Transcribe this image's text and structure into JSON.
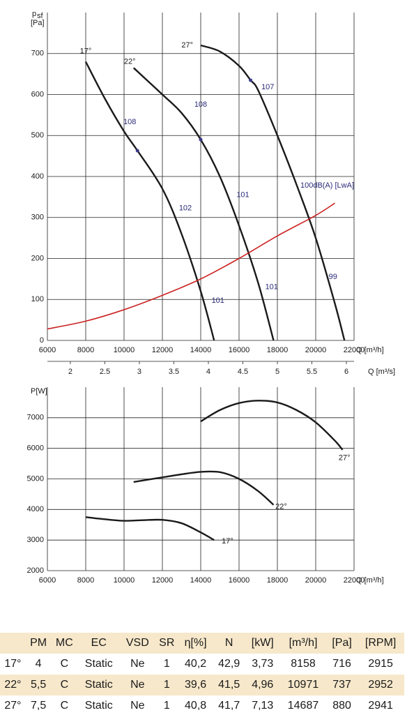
{
  "chart_data": [
    {
      "type": "line",
      "y_label": [
        "p",
        "sf",
        "[Pa]"
      ],
      "x_label": "Q [m³/h]",
      "x2_label": "Q [m³/s]",
      "xlim": [
        6000,
        22000
      ],
      "xticks": [
        6000,
        8000,
        10000,
        12000,
        14000,
        16000,
        18000,
        20000,
        22000
      ],
      "ylim": [
        0,
        800
      ],
      "yticks": [
        0,
        100,
        200,
        300,
        400,
        500,
        600,
        700
      ],
      "x2lim": [
        1.667,
        6.111
      ],
      "x2ticks": [
        2,
        2.5,
        3,
        3.5,
        4,
        4.5,
        5,
        5.5,
        6
      ],
      "grid": true,
      "series": [
        {
          "name": "17°",
          "color": "#1a1a1a",
          "x": [
            8000,
            9000,
            10000,
            10700,
            12000,
            13000,
            14000,
            14700
          ],
          "values": [
            680,
            590,
            510,
            463,
            370,
            260,
            120,
            0
          ]
        },
        {
          "name": "22°",
          "color": "#1a1a1a",
          "x": [
            10500,
            12000,
            13000,
            14000,
            15000,
            16000,
            17000,
            17800
          ],
          "values": [
            665,
            600,
            555,
            490,
            400,
            280,
            140,
            0
          ]
        },
        {
          "name": "27°",
          "color": "#1a1a1a",
          "x": [
            14000,
            15000,
            16000,
            16600,
            17000,
            18000,
            19000,
            20000,
            21000,
            21500
          ],
          "values": [
            720,
            705,
            670,
            635,
            610,
            500,
            380,
            250,
            90,
            0
          ]
        },
        {
          "name": "system",
          "color": "#cc2222",
          "x": [
            6000,
            8000,
            10000,
            12000,
            14000,
            16000,
            18000,
            20000,
            21000
          ],
          "values": [
            28,
            47,
            75,
            110,
            150,
            200,
            255,
            305,
            335
          ]
        }
      ],
      "markers": {
        "color": "#3a3a8a",
        "x": [
          10700,
          14000,
          16600
        ],
        "values": [
          463,
          490,
          635
        ]
      },
      "annotations": [
        {
          "text": "17°",
          "x": 8000,
          "y": 705,
          "color": "#1a1a1a"
        },
        {
          "text": "22°",
          "x": 10300,
          "y": 680,
          "color": "#1a1a1a"
        },
        {
          "text": "27°",
          "x": 13300,
          "y": 720,
          "color": "#1a1a1a"
        },
        {
          "text": "108",
          "x": 10300,
          "y": 533,
          "color": "#2a2a7a"
        },
        {
          "text": "102",
          "x": 13200,
          "y": 322,
          "color": "#2a2a7a"
        },
        {
          "text": "101",
          "x": 14900,
          "y": 97,
          "color": "#2a2a7a"
        },
        {
          "text": "108",
          "x": 14000,
          "y": 575,
          "color": "#2a2a7a"
        },
        {
          "text": "101",
          "x": 16200,
          "y": 355,
          "color": "#2a2a7a"
        },
        {
          "text": "101",
          "x": 17700,
          "y": 130,
          "color": "#2a2a7a"
        },
        {
          "text": "107",
          "x": 17500,
          "y": 618,
          "color": "#2a2a7a"
        },
        {
          "text": "100dB(A) [LwA]",
          "x": 20600,
          "y": 378,
          "color": "#2a2a7a"
        },
        {
          "text": "99",
          "x": 20900,
          "y": 155,
          "color": "#2a2a7a"
        }
      ]
    },
    {
      "type": "line",
      "y_label": [
        "P[W]"
      ],
      "x_label": "Q [m³/h]",
      "xlim": [
        6000,
        22000
      ],
      "xticks": [
        6000,
        8000,
        10000,
        12000,
        14000,
        16000,
        18000,
        20000,
        22000
      ],
      "ylim": [
        2000,
        8000
      ],
      "yticks": [
        2000,
        3000,
        4000,
        5000,
        6000,
        7000
      ],
      "grid": true,
      "series": [
        {
          "name": "17°",
          "color": "#1a1a1a",
          "x": [
            8000,
            9000,
            10000,
            11000,
            12000,
            13000,
            14000,
            14700
          ],
          "values": [
            3750,
            3680,
            3630,
            3650,
            3660,
            3550,
            3250,
            3000
          ]
        },
        {
          "name": "22°",
          "color": "#1a1a1a",
          "x": [
            10500,
            12000,
            13000,
            14000,
            15000,
            16000,
            17000,
            17800
          ],
          "values": [
            4900,
            5050,
            5150,
            5230,
            5220,
            5000,
            4600,
            4150
          ]
        },
        {
          "name": "27°",
          "color": "#1a1a1a",
          "x": [
            14000,
            15000,
            16000,
            17000,
            18000,
            19000,
            20000,
            21000,
            21400
          ],
          "values": [
            6880,
            7250,
            7480,
            7560,
            7500,
            7250,
            6850,
            6250,
            5950
          ]
        }
      ],
      "annotations": [
        {
          "text": "27°",
          "x": 21500,
          "y": 5680,
          "color": "#1a1a1a"
        },
        {
          "text": "22°",
          "x": 18200,
          "y": 4080,
          "color": "#1a1a1a"
        },
        {
          "text": "17°",
          "x": 15400,
          "y": 2960,
          "color": "#1a1a1a"
        }
      ]
    }
  ],
  "table": {
    "header": [
      "",
      "PM",
      "MC",
      "EC",
      "VSD",
      "SR",
      "η[%]",
      "N",
      "[kW]",
      "[m³/h]",
      "[Pa]",
      "[RPM]"
    ],
    "rows": [
      [
        "17°",
        "4",
        "C",
        "Static",
        "Ne",
        "1",
        "40,2",
        "42,9",
        "3,73",
        "8158",
        "716",
        "2915"
      ],
      [
        "22°",
        "5,5",
        "C",
        "Static",
        "Ne",
        "1",
        "39,6",
        "41,5",
        "4,96",
        "10971",
        "737",
        "2952"
      ],
      [
        "27°",
        "7,5",
        "C",
        "Static",
        "Ne",
        "1",
        "40,8",
        "41,7",
        "7,13",
        "14687",
        "880",
        "2941"
      ]
    ]
  }
}
